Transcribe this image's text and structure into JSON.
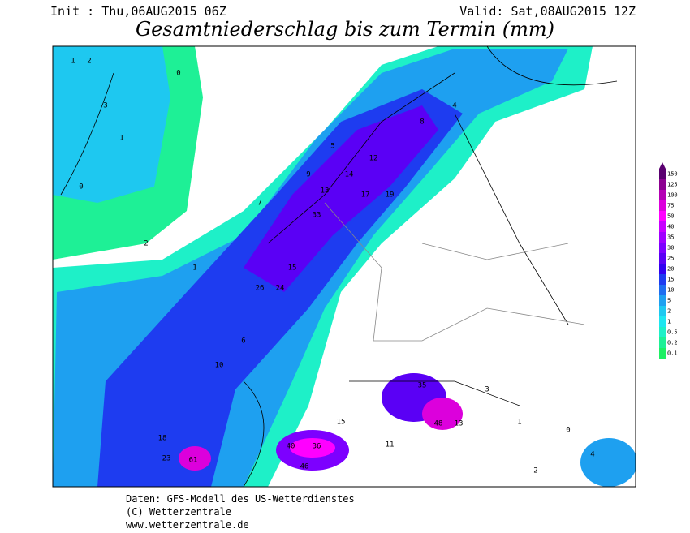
{
  "header": {
    "init": "Init : Thu,06AUG2015 06Z",
    "valid": "Valid: Sat,08AUG2015 12Z",
    "title": "Gesamtniederschlag bis zum Termin (mm)"
  },
  "legend": {
    "labels": [
      "150",
      "125",
      "100",
      "75",
      "50",
      "40",
      "35",
      "30",
      "25",
      "20",
      "15",
      "10",
      "5",
      "2",
      "1",
      "0.5",
      "0.2",
      "0.1"
    ],
    "colors": [
      "#5a0070",
      "#8c0090",
      "#b400b4",
      "#dc00dc",
      "#ff00ff",
      "#c800ff",
      "#a000ff",
      "#7d00ff",
      "#5a00f5",
      "#3200f0",
      "#1e3cf0",
      "#1e6ef0",
      "#1ea0f0",
      "#1ec8f0",
      "#1ee6f0",
      "#1ef0c8",
      "#1ef096",
      "#1ef064"
    ]
  },
  "map_labels": [
    "1",
    "2",
    "0",
    "3",
    "1",
    "0",
    "2",
    "1",
    "7",
    "9",
    "13",
    "14",
    "17",
    "19",
    "33",
    "26",
    "24",
    "15",
    "12",
    "5",
    "8",
    "4",
    "6",
    "10",
    "18",
    "23",
    "61",
    "40",
    "36",
    "46",
    "35",
    "48",
    "13",
    "3",
    "0",
    "1",
    "2",
    "4",
    "11",
    "15"
  ],
  "footer": {
    "line1": "Daten: GFS-Modell des US-Wetterdienstes",
    "line2": "(C) Wetterzentrale",
    "line3": "www.wetterzentrale.de"
  }
}
